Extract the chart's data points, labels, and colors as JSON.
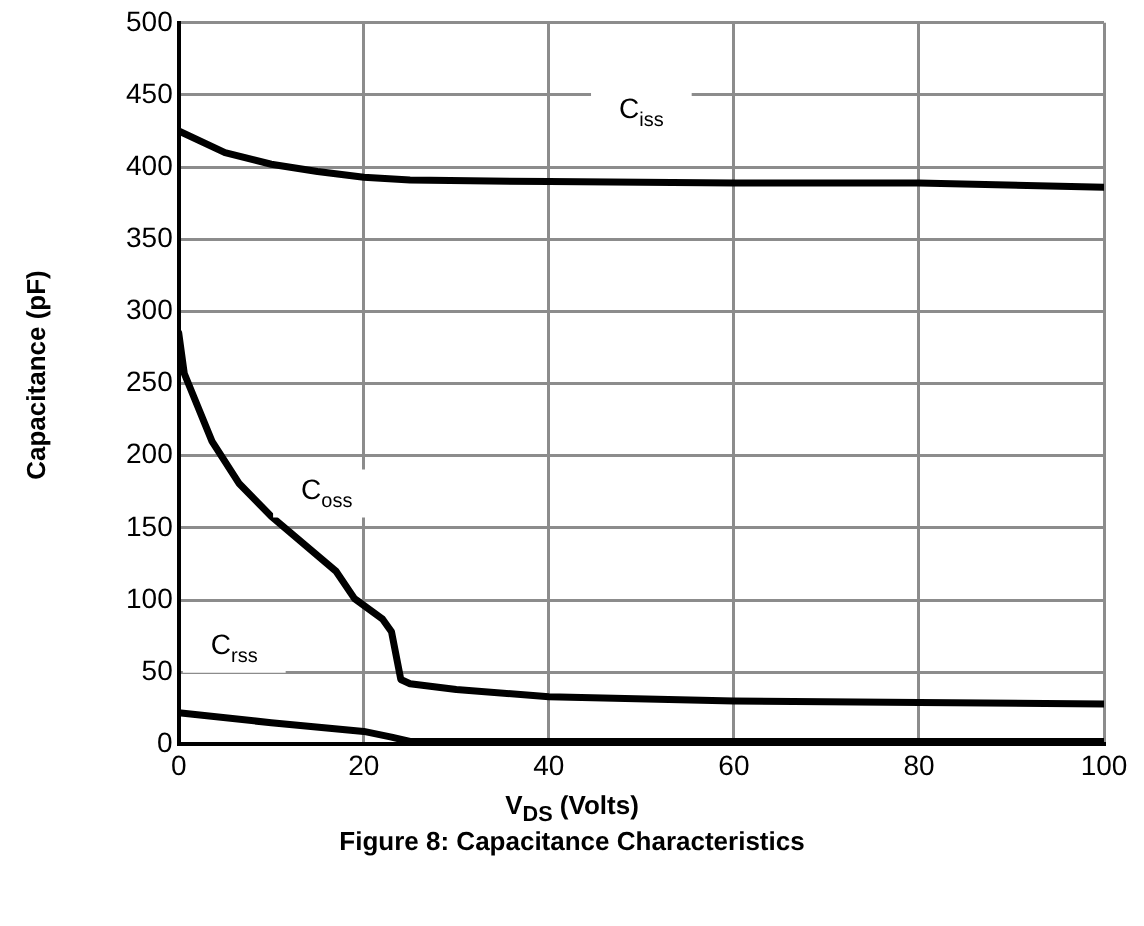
{
  "chart_data": {
    "type": "line",
    "title": "Figure 8: Capacitance Characteristics",
    "xlabel": "V$_{DS}$ (Volts)",
    "ylabel": "Capacitance (pF)",
    "xlim": [
      0,
      100
    ],
    "xticks": [
      0,
      20,
      40,
      60,
      80,
      100
    ],
    "ylim": [
      0,
      500
    ],
    "yticks": [
      0,
      50,
      100,
      150,
      200,
      250,
      300,
      350,
      400,
      450,
      500
    ],
    "grid": true,
    "legend": false,
    "marker": "none",
    "line_style": "solid",
    "series": [
      {
        "name": "C$_{iss}$",
        "color": "#000000",
        "x": [
          0,
          5,
          10,
          15,
          20,
          25,
          40,
          60,
          80,
          100
        ],
        "values": [
          425,
          410,
          402,
          397,
          393,
          391,
          390,
          389,
          389,
          386
        ]
      },
      {
        "name": "C$_{oss}$",
        "color": "#000000",
        "x": [
          0,
          0.6,
          3.6,
          6.5,
          10,
          17,
          19,
          22,
          23,
          24,
          25,
          30,
          40,
          60,
          80,
          100
        ],
        "values": [
          285,
          257,
          210,
          181,
          158,
          120,
          101,
          87,
          78,
          45,
          42,
          38,
          33,
          30,
          29,
          28
        ]
      },
      {
        "name": "C$_{rss}$",
        "color": "#000000",
        "x": [
          0,
          10,
          20,
          23,
          25,
          40,
          60,
          80,
          100
        ],
        "values": [
          22,
          15,
          9,
          5,
          2,
          2,
          2,
          2,
          2
        ]
      }
    ]
  }
}
